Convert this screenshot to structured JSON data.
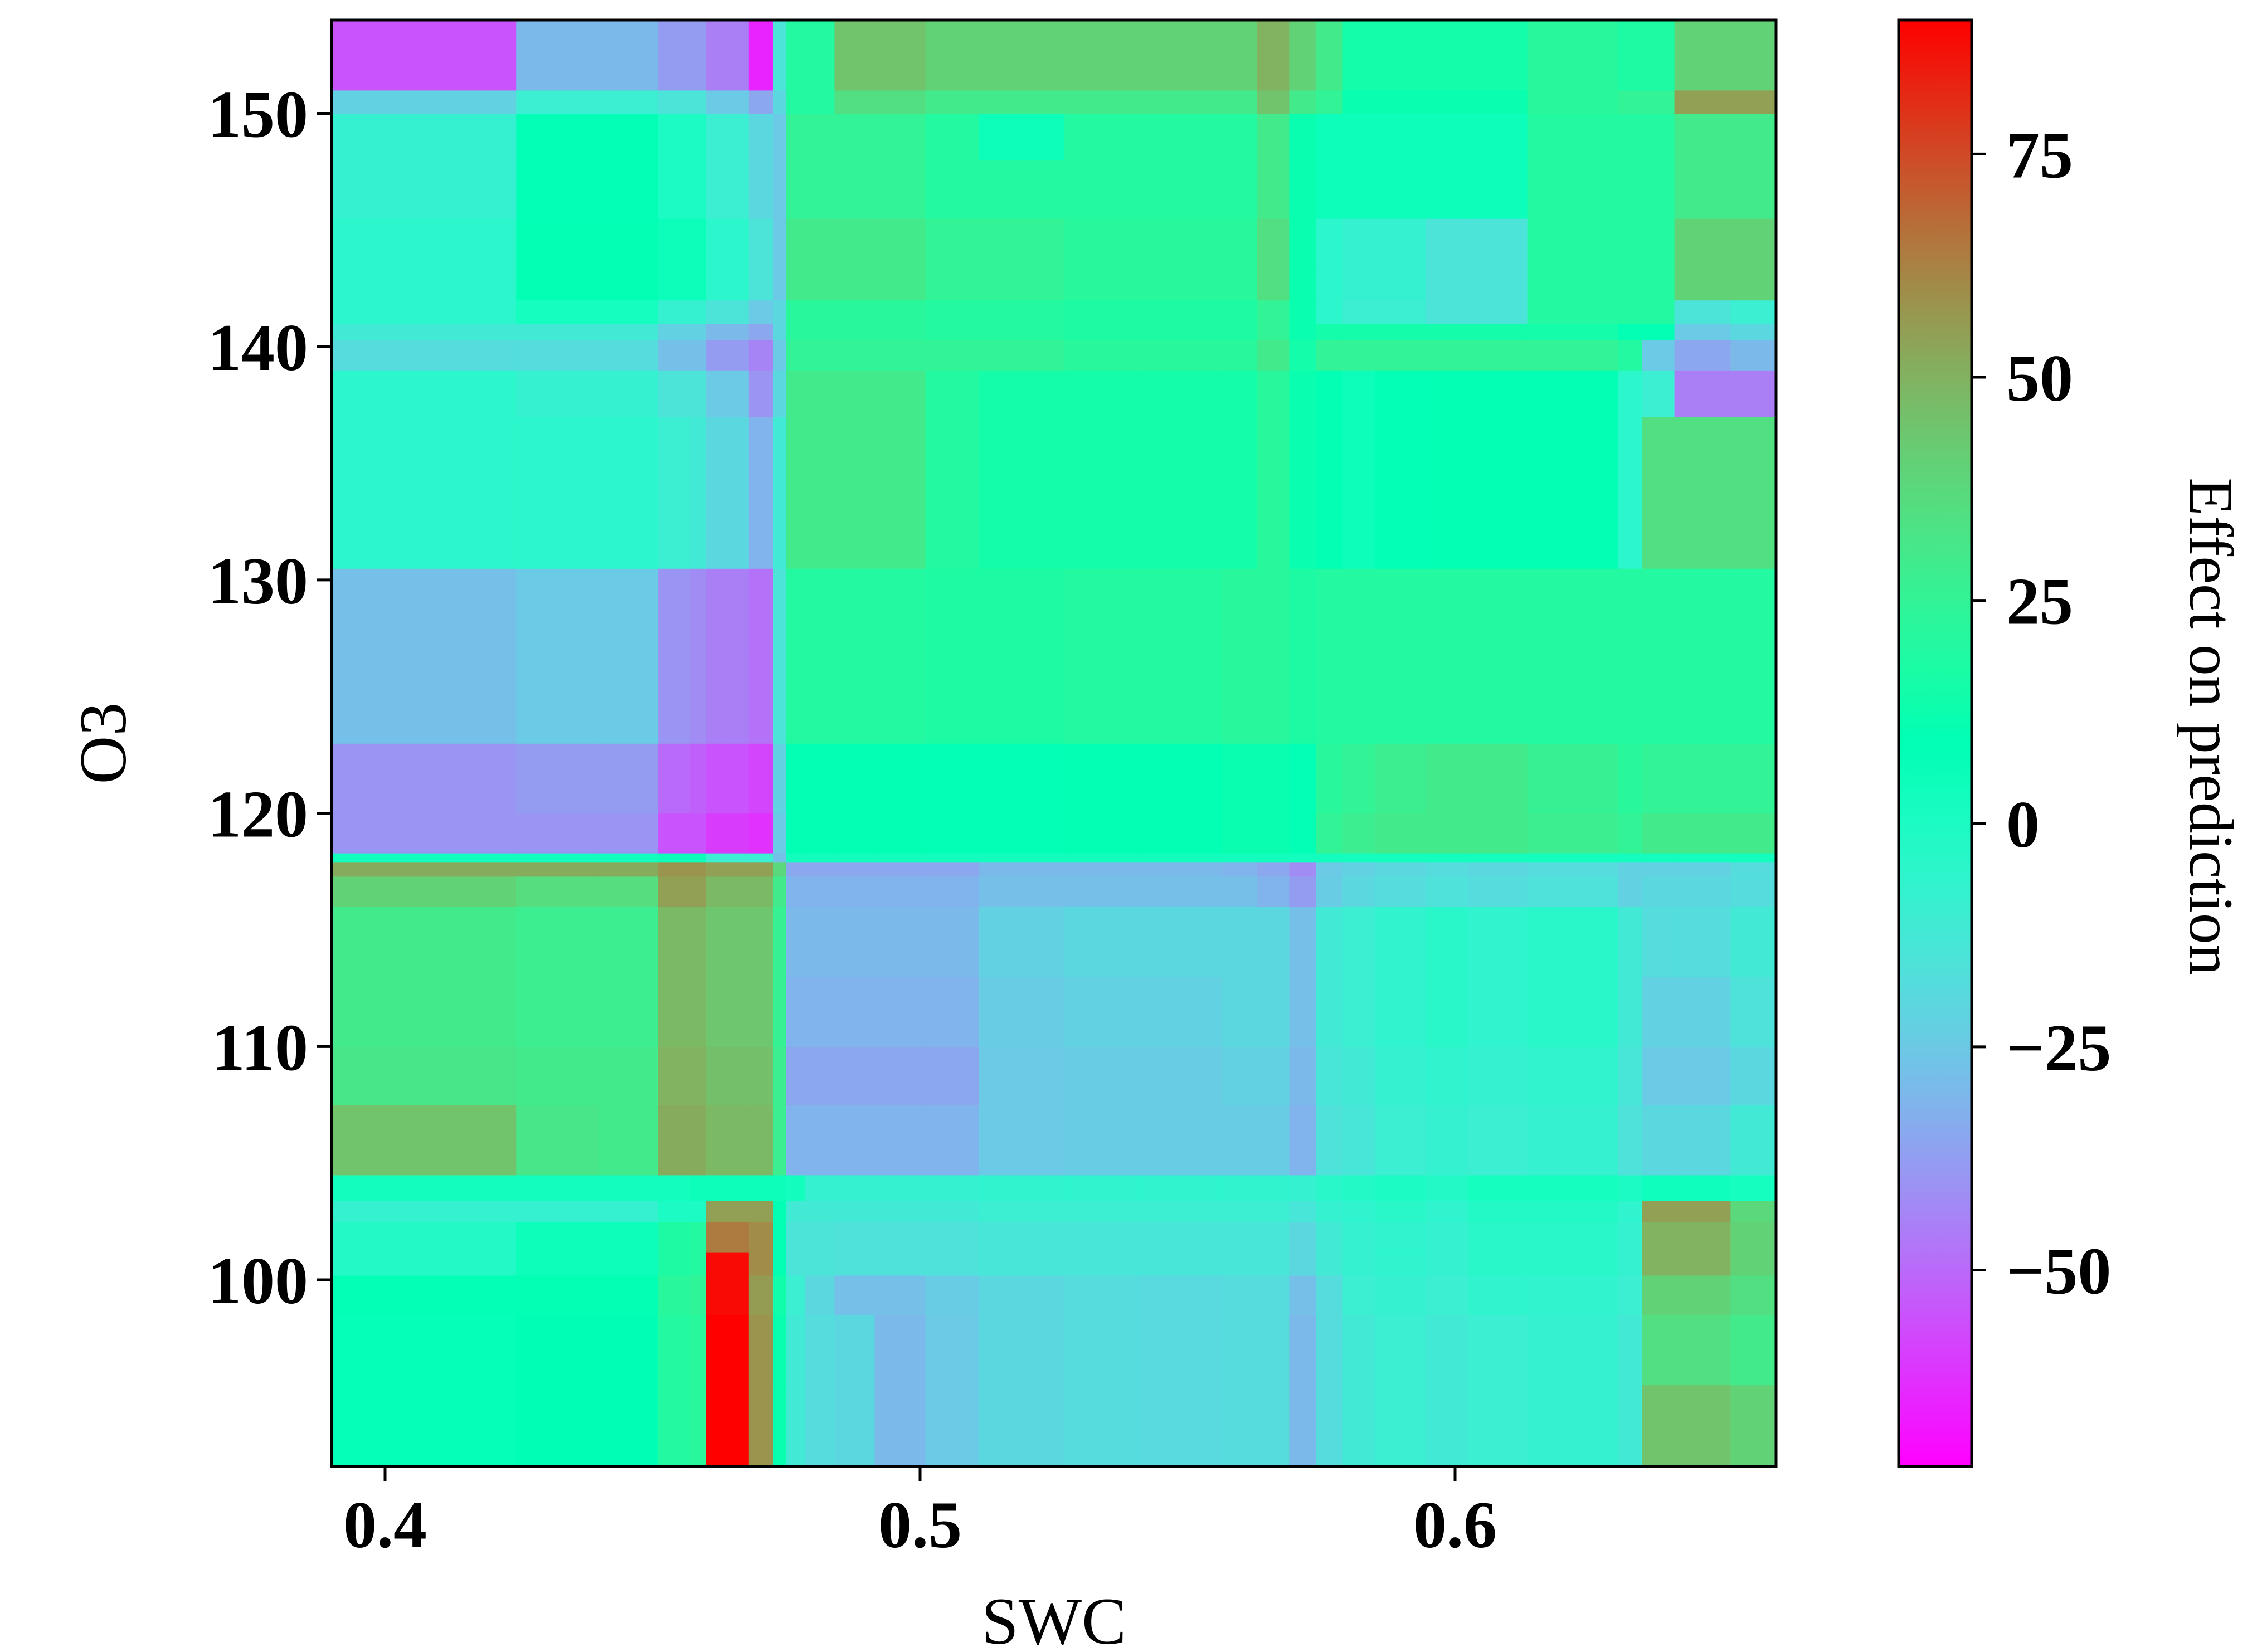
{
  "chart_data": {
    "type": "heatmap",
    "title": "",
    "xlabel": "SWC",
    "ylabel": "O3",
    "colorbar_label": "Effect on prediction",
    "xlim": [
      0.39,
      0.66
    ],
    "ylim": [
      92,
      154
    ],
    "xticks": [
      {
        "value": 0.4,
        "label": "0.4"
      },
      {
        "value": 0.5,
        "label": "0.5"
      },
      {
        "value": 0.6,
        "label": "0.6"
      }
    ],
    "yticks": [
      {
        "value": 100,
        "label": "100"
      },
      {
        "value": 110,
        "label": "110"
      },
      {
        "value": 120,
        "label": "120"
      },
      {
        "value": 130,
        "label": "130"
      },
      {
        "value": 140,
        "label": "140"
      },
      {
        "value": 150,
        "label": "150"
      }
    ],
    "colorbar_range": [
      -72,
      90
    ],
    "colorbar_ticks": [
      {
        "value": -50,
        "label": "−50"
      },
      {
        "value": -25,
        "label": "−25"
      },
      {
        "value": 0,
        "label": "0"
      },
      {
        "value": 25,
        "label": "25"
      },
      {
        "value": 50,
        "label": "50"
      },
      {
        "value": 75,
        "label": "75"
      }
    ],
    "colormap": "rainbow",
    "x_edges": [
      0.39,
      0.4245,
      0.43,
      0.44,
      0.451,
      0.457,
      0.46,
      0.463,
      0.468,
      0.4725,
      0.475,
      0.4785,
      0.484,
      0.4915,
      0.501,
      0.511,
      0.527,
      0.541,
      0.5565,
      0.563,
      0.569,
      0.574,
      0.579,
      0.585,
      0.5945,
      0.6025,
      0.6135,
      0.6305,
      0.635,
      0.641,
      0.6515,
      0.66
    ],
    "y_edges": [
      92,
      95.5,
      98.5,
      100.2,
      101.2,
      102.5,
      103.4,
      104.5,
      107.5,
      110,
      113,
      116,
      117.3,
      117.9,
      118.3,
      120,
      123,
      127,
      130.5,
      133.5,
      137,
      139,
      140.3,
      141,
      142,
      143.5,
      145.5,
      148,
      150,
      151,
      152,
      154
    ],
    "values": [
      [
        7,
        9,
        9,
        9,
        20,
        22,
        92,
        92,
        58,
        12,
        -12,
        -18,
        -20,
        -30,
        -25,
        -20,
        -18,
        -19,
        -18,
        -18,
        -30,
        -18,
        -12,
        -10,
        -12,
        -10,
        -8,
        -12,
        45,
        45,
        40
      ],
      [
        7,
        9,
        9,
        9,
        20,
        22,
        92,
        92,
        58,
        12,
        -12,
        -18,
        -20,
        -30,
        -25,
        -20,
        -18,
        -19,
        -18,
        -18,
        -30,
        -18,
        -12,
        -10,
        -12,
        -10,
        -8,
        -12,
        35,
        35,
        30
      ],
      [
        8,
        10,
        10,
        10,
        22,
        24,
        88,
        88,
        56,
        14,
        -10,
        -20,
        -28,
        -28,
        -24,
        -20,
        -18,
        -19,
        -18,
        -18,
        -28,
        -18,
        -10,
        -8,
        -10,
        -6,
        -6,
        -10,
        40,
        40,
        35
      ],
      [
        -2,
        5,
        5,
        5,
        18,
        20,
        88,
        88,
        60,
        10,
        -15,
        -15,
        -16,
        -16,
        -16,
        -14,
        -14,
        -14,
        -14,
        -14,
        -20,
        -12,
        -8,
        -6,
        -8,
        -4,
        -4,
        -8,
        50,
        50,
        40
      ],
      [
        -2,
        5,
        5,
        5,
        18,
        20,
        64,
        64,
        60,
        10,
        -15,
        -15,
        -16,
        -16,
        -16,
        -14,
        -14,
        -14,
        -14,
        -14,
        -20,
        -12,
        -8,
        -6,
        -8,
        -4,
        -4,
        -8,
        50,
        50,
        40
      ],
      [
        -8,
        -8,
        -8,
        -8,
        0,
        0,
        55,
        55,
        55,
        10,
        -12,
        -12,
        -12,
        -12,
        -12,
        -10,
        -10,
        -10,
        -10,
        -10,
        -14,
        -8,
        -6,
        -4,
        -6,
        -2,
        -2,
        -6,
        55,
        55,
        38
      ],
      [
        3,
        3,
        3,
        3,
        3,
        5,
        5,
        5,
        5,
        5,
        3,
        -8,
        -8,
        -8,
        -8,
        -6,
        -6,
        -6,
        -6,
        -6,
        -8,
        -4,
        -2,
        0,
        -2,
        2,
        2,
        0,
        4,
        4,
        2
      ],
      [
        45,
        32,
        32,
        30,
        52,
        52,
        48,
        48,
        48,
        28,
        -32,
        -32,
        -32,
        -32,
        -32,
        -25,
        -24,
        -24,
        -24,
        -24,
        -32,
        -16,
        -14,
        -10,
        -8,
        -10,
        -8,
        -16,
        -20,
        -20,
        -12
      ],
      [
        32,
        30,
        30,
        30,
        50,
        50,
        46,
        46,
        46,
        28,
        -35,
        -35,
        -35,
        -35,
        -35,
        -25,
        -24,
        -24,
        -22,
        -22,
        -30,
        -14,
        -12,
        -8,
        -6,
        -8,
        -6,
        -14,
        -25,
        -25,
        -20
      ],
      [
        30,
        28,
        28,
        28,
        48,
        48,
        44,
        44,
        44,
        26,
        -32,
        -32,
        -32,
        -32,
        -32,
        -24,
        -22,
        -22,
        -20,
        -20,
        -28,
        -12,
        -10,
        -6,
        -4,
        -6,
        -4,
        -12,
        -22,
        -22,
        -16
      ],
      [
        30,
        28,
        28,
        28,
        48,
        48,
        44,
        44,
        44,
        26,
        -30,
        -30,
        -30,
        -30,
        -30,
        -22,
        -20,
        -20,
        -20,
        -20,
        -28,
        -12,
        -10,
        -6,
        -4,
        -6,
        -4,
        -12,
        -18,
        -18,
        -12
      ],
      [
        40,
        36,
        36,
        36,
        55,
        55,
        48,
        48,
        48,
        30,
        -32,
        -32,
        -32,
        -32,
        -32,
        -28,
        -28,
        -28,
        -28,
        -32,
        -38,
        -24,
        -20,
        -18,
        -16,
        -18,
        -16,
        -22,
        -20,
        -20,
        -18
      ],
      [
        52,
        52,
        52,
        52,
        58,
        58,
        55,
        55,
        55,
        38,
        -35,
        -35,
        -35,
        -35,
        -35,
        -30,
        -30,
        -30,
        -32,
        -35,
        -42,
        -25,
        -22,
        -20,
        -18,
        -20,
        -18,
        -22,
        -22,
        -22,
        -18
      ],
      [
        3,
        3,
        3,
        3,
        5,
        5,
        -10,
        -10,
        -10,
        -28,
        3,
        3,
        3,
        3,
        3,
        3,
        3,
        3,
        3,
        3,
        3,
        3,
        3,
        3,
        3,
        3,
        3,
        3,
        3,
        3,
        3
      ],
      [
        -40,
        -40,
        -40,
        -40,
        -55,
        -55,
        -60,
        -60,
        -62,
        -25,
        10,
        10,
        10,
        10,
        8,
        8,
        10,
        10,
        12,
        12,
        8,
        25,
        28,
        30,
        30,
        30,
        28,
        25,
        30,
        30,
        30
      ],
      [
        -40,
        -38,
        -38,
        -38,
        -50,
        -52,
        -55,
        -55,
        -58,
        -22,
        10,
        10,
        10,
        10,
        8,
        8,
        10,
        10,
        12,
        12,
        8,
        22,
        25,
        28,
        30,
        30,
        26,
        22,
        25,
        25,
        25
      ],
      [
        -28,
        -25,
        -25,
        -25,
        -40,
        -42,
        -45,
        -45,
        -48,
        -15,
        20,
        20,
        20,
        20,
        18,
        18,
        20,
        20,
        22,
        22,
        18,
        20,
        20,
        20,
        20,
        20,
        20,
        20,
        20,
        20,
        20
      ],
      [
        -28,
        -25,
        -25,
        -25,
        -40,
        -42,
        -45,
        -45,
        -48,
        -15,
        20,
        20,
        20,
        20,
        18,
        18,
        20,
        20,
        22,
        22,
        18,
        20,
        20,
        20,
        20,
        20,
        20,
        20,
        20,
        20,
        20
      ],
      [
        -5,
        -5,
        -5,
        -5,
        -10,
        -12,
        -20,
        -20,
        -32,
        -12,
        30,
        30,
        30,
        30,
        20,
        15,
        15,
        15,
        15,
        22,
        12,
        10,
        5,
        8,
        10,
        10,
        10,
        -5,
        35,
        35,
        35
      ],
      [
        -5,
        -5,
        -5,
        -5,
        -10,
        -12,
        -20,
        -20,
        -32,
        -12,
        30,
        30,
        30,
        30,
        20,
        15,
        15,
        15,
        15,
        22,
        12,
        10,
        5,
        8,
        10,
        10,
        10,
        -5,
        35,
        35,
        35
      ],
      [
        -5,
        -8,
        -8,
        -8,
        -15,
        -15,
        -25,
        -25,
        -40,
        -20,
        30,
        30,
        30,
        30,
        20,
        15,
        15,
        15,
        15,
        22,
        12,
        10,
        5,
        8,
        10,
        10,
        10,
        -5,
        -10,
        -45,
        -45
      ],
      [
        -18,
        -18,
        -18,
        -18,
        -28,
        -28,
        -38,
        -38,
        -44,
        -25,
        25,
        25,
        25,
        25,
        25,
        25,
        22,
        22,
        22,
        30,
        15,
        25,
        25,
        25,
        25,
        25,
        25,
        20,
        -25,
        -35,
        -30
      ],
      [
        -12,
        -12,
        -12,
        -12,
        -22,
        -22,
        -30,
        -30,
        -35,
        -20,
        22,
        22,
        22,
        22,
        20,
        20,
        18,
        18,
        18,
        25,
        12,
        15,
        15,
        15,
        15,
        15,
        15,
        10,
        10,
        -25,
        -20
      ],
      [
        -5,
        2,
        2,
        2,
        -8,
        -8,
        -15,
        -15,
        -25,
        -20,
        22,
        22,
        22,
        22,
        20,
        20,
        18,
        18,
        18,
        25,
        12,
        -5,
        -10,
        -10,
        -15,
        -15,
        20,
        20,
        20,
        -15,
        -10
      ],
      [
        -5,
        10,
        10,
        10,
        5,
        5,
        -5,
        -5,
        -15,
        -25,
        30,
        30,
        30,
        30,
        25,
        25,
        22,
        22,
        22,
        35,
        12,
        -5,
        -8,
        -8,
        -15,
        -15,
        20,
        20,
        20,
        40,
        40
      ],
      [
        -5,
        10,
        10,
        10,
        5,
        5,
        -5,
        -5,
        -15,
        -25,
        30,
        30,
        30,
        30,
        25,
        25,
        22,
        22,
        22,
        35,
        12,
        -5,
        -8,
        -8,
        -15,
        -15,
        20,
        20,
        20,
        40,
        40
      ],
      [
        -8,
        8,
        8,
        8,
        0,
        0,
        -10,
        -10,
        -20,
        -25,
        25,
        25,
        25,
        25,
        20,
        20,
        20,
        20,
        20,
        30,
        12,
        5,
        5,
        5,
        5,
        5,
        20,
        20,
        20,
        30,
        30
      ],
      [
        -8,
        8,
        8,
        8,
        0,
        0,
        -10,
        -10,
        -20,
        -25,
        25,
        25,
        25,
        25,
        20,
        5,
        20,
        20,
        20,
        30,
        12,
        5,
        5,
        5,
        5,
        5,
        20,
        20,
        20,
        30,
        30
      ],
      [
        -22,
        -10,
        -10,
        -10,
        -15,
        -15,
        -25,
        -25,
        -35,
        -20,
        20,
        20,
        35,
        35,
        30,
        30,
        30,
        30,
        30,
        45,
        30,
        25,
        12,
        12,
        12,
        12,
        22,
        25,
        25,
        55,
        55
      ],
      [
        -55,
        -30,
        -30,
        -30,
        -38,
        -38,
        -45,
        -45,
        -65,
        -15,
        20,
        20,
        45,
        45,
        40,
        40,
        40,
        40,
        40,
        50,
        40,
        30,
        15,
        15,
        15,
        15,
        22,
        18,
        18,
        40,
        40
      ],
      [
        -55,
        -30,
        -30,
        -30,
        -38,
        -38,
        -45,
        -45,
        -65,
        -15,
        20,
        20,
        45,
        45,
        40,
        40,
        40,
        40,
        40,
        50,
        40,
        30,
        15,
        15,
        15,
        15,
        22,
        18,
        18,
        40,
        40
      ]
    ]
  }
}
